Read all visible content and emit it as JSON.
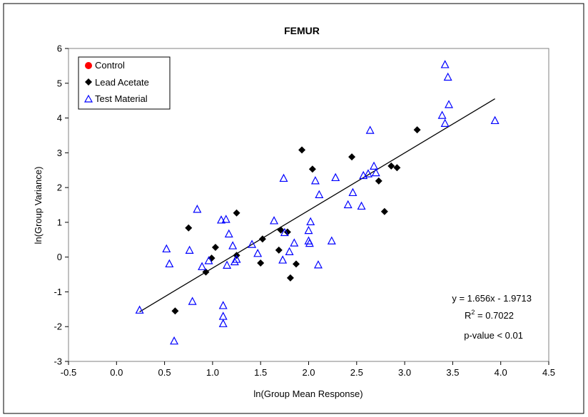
{
  "chart_data": {
    "type": "scatter",
    "title": "FEMUR",
    "xlabel": "ln(Group Mean Response)",
    "ylabel": "ln(Group Variance)",
    "xlim": [
      -0.5,
      4.5
    ],
    "ylim": [
      -3,
      6
    ],
    "x_ticks": [
      "-0.5",
      "0.0",
      "0.5",
      "1.0",
      "1.5",
      "2.0",
      "2.5",
      "3.0",
      "3.5",
      "4.0",
      "4.5"
    ],
    "y_ticks": [
      "-3",
      "-2",
      "-1",
      "0",
      "1",
      "2",
      "3",
      "4",
      "5",
      "6"
    ],
    "legend_position": "top-left",
    "grid": false,
    "series": [
      {
        "name": "Control",
        "marker": "circle",
        "color": "#ff0000",
        "points": []
      },
      {
        "name": "Lead Acetate",
        "marker": "diamond",
        "color": "#000000",
        "points": [
          [
            0.61,
            -1.55
          ],
          [
            0.75,
            0.84
          ],
          [
            0.93,
            -0.43
          ],
          [
            0.99,
            -0.03
          ],
          [
            1.03,
            0.28
          ],
          [
            1.25,
            1.27
          ],
          [
            1.25,
            0.05
          ],
          [
            1.5,
            -0.17
          ],
          [
            1.52,
            0.52
          ],
          [
            1.69,
            0.2
          ],
          [
            1.71,
            0.78
          ],
          [
            1.78,
            0.72
          ],
          [
            1.81,
            -0.6
          ],
          [
            1.87,
            -0.2
          ],
          [
            1.93,
            3.08
          ],
          [
            2.04,
            2.53
          ],
          [
            2.45,
            2.88
          ],
          [
            2.73,
            2.19
          ],
          [
            2.79,
            1.31
          ],
          [
            2.86,
            2.62
          ],
          [
            2.92,
            2.57
          ],
          [
            3.13,
            3.66
          ]
        ]
      },
      {
        "name": "Test Material",
        "marker": "triangle-open",
        "color": "#0000ff",
        "points": [
          [
            0.24,
            -1.53
          ],
          [
            0.52,
            0.23
          ],
          [
            0.55,
            -0.2
          ],
          [
            0.6,
            -2.42
          ],
          [
            0.76,
            0.19
          ],
          [
            0.79,
            -1.28
          ],
          [
            0.84,
            1.37
          ],
          [
            0.89,
            -0.28
          ],
          [
            0.96,
            -0.11
          ],
          [
            1.09,
            1.06
          ],
          [
            1.11,
            -1.4
          ],
          [
            1.11,
            -1.71
          ],
          [
            1.11,
            -1.92
          ],
          [
            1.14,
            1.08
          ],
          [
            1.15,
            -0.24
          ],
          [
            1.17,
            0.66
          ],
          [
            1.21,
            0.32
          ],
          [
            1.23,
            -0.14
          ],
          [
            1.25,
            -0.07
          ],
          [
            1.41,
            0.36
          ],
          [
            1.47,
            0.1
          ],
          [
            1.64,
            1.04
          ],
          [
            1.73,
            -0.09
          ],
          [
            1.74,
            2.26
          ],
          [
            1.75,
            0.7
          ],
          [
            1.8,
            0.15
          ],
          [
            1.85,
            0.4
          ],
          [
            2.0,
            0.46
          ],
          [
            2.0,
            0.76
          ],
          [
            2.01,
            0.39
          ],
          [
            2.02,
            1.01
          ],
          [
            2.07,
            2.19
          ],
          [
            2.11,
            1.79
          ],
          [
            2.1,
            -0.23
          ],
          [
            2.24,
            0.46
          ],
          [
            2.28,
            2.28
          ],
          [
            2.41,
            1.5
          ],
          [
            2.46,
            1.85
          ],
          [
            2.55,
            1.46
          ],
          [
            2.57,
            2.34
          ],
          [
            2.62,
            2.39
          ],
          [
            2.64,
            3.64
          ],
          [
            2.68,
            2.61
          ],
          [
            2.7,
            2.42
          ],
          [
            3.39,
            4.07
          ],
          [
            3.42,
            5.53
          ],
          [
            3.42,
            3.84
          ],
          [
            3.45,
            5.17
          ],
          [
            3.46,
            4.38
          ],
          [
            3.94,
            3.92
          ]
        ]
      }
    ],
    "trendline": {
      "slope": 1.656,
      "intercept": -1.9713,
      "x_range": [
        0.24,
        3.94
      ]
    },
    "annotations": {
      "equation": "y = 1.656x - 1.9713",
      "r2_label": "R",
      "r2_sup": "2",
      "r2_value": " = 0.7022",
      "p_value": "p-value < 0.01"
    }
  }
}
